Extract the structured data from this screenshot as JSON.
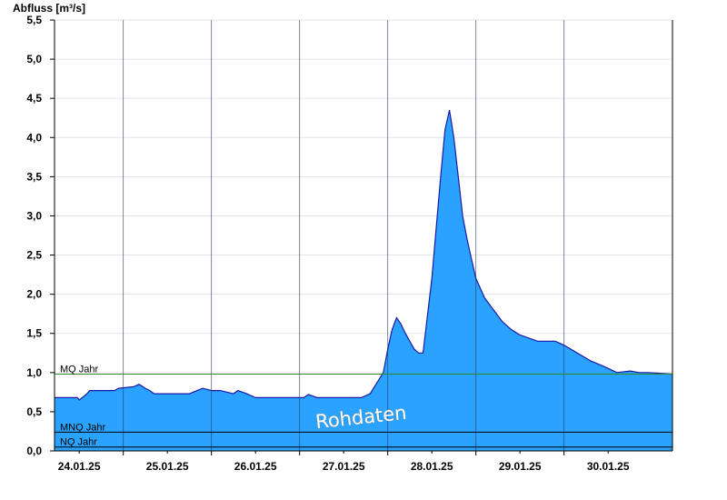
{
  "chart_data": {
    "type": "area",
    "title": "",
    "ylabel": "Abfluss [m³/s]",
    "xlabel": "",
    "ylim": [
      0,
      5.5
    ],
    "xlim": [
      -0.28,
      6.73
    ],
    "yticks": [
      0,
      0.5,
      1.0,
      1.5,
      2.0,
      2.5,
      3.0,
      3.5,
      4.0,
      4.5,
      5.0,
      5.5
    ],
    "ytick_labels": [
      "0,0",
      "0,5",
      "1,0",
      "1,5",
      "2,0",
      "2,5",
      "3,0",
      "3,5",
      "4,0",
      "4,5",
      "5,0",
      "5,5"
    ],
    "xtick_labels": [
      "24.01.25",
      "25.01.25",
      "26.01.25",
      "27.01.25",
      "28.01.25",
      "29.01.25",
      "30.01.25"
    ],
    "xtick_label_positions": [
      0,
      1,
      2,
      3,
      4,
      5,
      6
    ],
    "vertical_gridlines": [
      0.5,
      1.5,
      2.5,
      3.5,
      4.5,
      5.5
    ],
    "grid": "horizontal light grey, vertical dark lines",
    "fill_color": "#29a3ff",
    "line_color": "#1a1aa6",
    "watermark": "Rohdaten",
    "reference_lines": [
      {
        "label": "MQ Jahr",
        "value": 0.98,
        "color": "#2e8b2e"
      },
      {
        "label": "MNQ Jahr",
        "value": 0.24,
        "color": "#000000"
      },
      {
        "label": "NQ Jahr",
        "value": 0.05,
        "color": "#000000"
      }
    ],
    "series": [
      {
        "x": [
          -0.28,
          -0.02,
          0.0,
          0.08,
          0.12,
          0.4,
          0.45,
          0.62,
          0.68,
          0.75,
          0.8,
          0.85,
          1.0,
          1.25,
          1.4,
          1.5,
          1.6,
          1.75,
          1.8,
          1.9,
          2.0,
          2.1,
          2.3,
          2.55,
          2.6,
          2.7,
          2.85,
          3.2,
          3.3,
          3.45,
          3.5,
          3.55,
          3.6,
          3.65,
          3.7,
          3.75,
          3.8,
          3.85,
          3.9,
          4.0,
          4.1,
          4.15,
          4.2,
          4.25,
          4.3,
          4.35,
          4.4,
          4.45,
          4.5,
          4.6,
          4.7,
          4.8,
          4.9,
          5.0,
          5.2,
          5.4,
          5.5,
          5.65,
          5.8,
          5.95,
          6.1,
          6.25,
          6.35,
          6.45,
          6.73
        ],
        "values": [
          0.68,
          0.68,
          0.65,
          0.72,
          0.77,
          0.77,
          0.8,
          0.82,
          0.85,
          0.8,
          0.77,
          0.73,
          0.73,
          0.73,
          0.8,
          0.77,
          0.77,
          0.73,
          0.77,
          0.73,
          0.68,
          0.68,
          0.68,
          0.68,
          0.72,
          0.68,
          0.68,
          0.68,
          0.73,
          1.0,
          1.3,
          1.55,
          1.7,
          1.62,
          1.5,
          1.4,
          1.3,
          1.25,
          1.25,
          2.2,
          3.5,
          4.1,
          4.35,
          4.0,
          3.5,
          3.0,
          2.7,
          2.45,
          2.2,
          1.95,
          1.8,
          1.65,
          1.55,
          1.48,
          1.4,
          1.4,
          1.35,
          1.25,
          1.15,
          1.08,
          1.0,
          1.02,
          1.0,
          1.0,
          0.98
        ]
      }
    ]
  }
}
